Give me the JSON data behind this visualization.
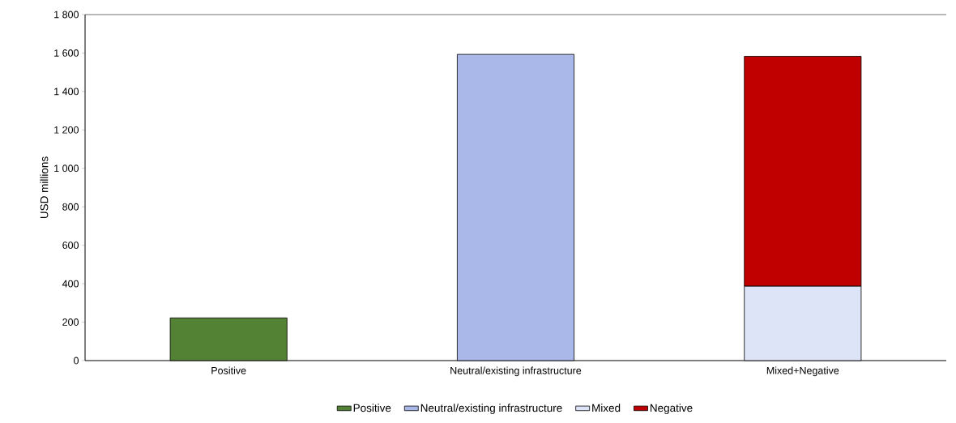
{
  "chart_data": {
    "type": "bar",
    "stacked": true,
    "ylabel": "USD millions",
    "categories": [
      "Positive",
      "Neutral/existing infrastructure",
      "Mixed+Negative"
    ],
    "series": [
      {
        "name": "Positive",
        "color": "#548235",
        "values": [
          222,
          null,
          null
        ]
      },
      {
        "name": "Neutral/existing infrastructure",
        "color": "#a9b8e8",
        "values": [
          null,
          1593,
          null
        ]
      },
      {
        "name": "Mixed",
        "color": "#dde4f7",
        "values": [
          null,
          null,
          387
        ]
      },
      {
        "name": "Negative",
        "color": "#c00000",
        "values": [
          null,
          null,
          1196
        ]
      }
    ],
    "ylim": [
      0,
      1800
    ],
    "yticks": [
      0,
      200,
      400,
      600,
      800,
      {
        "value": 1000,
        "label": "1 000"
      },
      {
        "value": 1200,
        "label": "1 200"
      },
      {
        "value": 1400,
        "label": "1 400"
      },
      {
        "value": 1600,
        "label": "1 600"
      },
      {
        "value": 1800,
        "label": "1 800"
      }
    ],
    "grid": false,
    "legend": "bottom"
  }
}
